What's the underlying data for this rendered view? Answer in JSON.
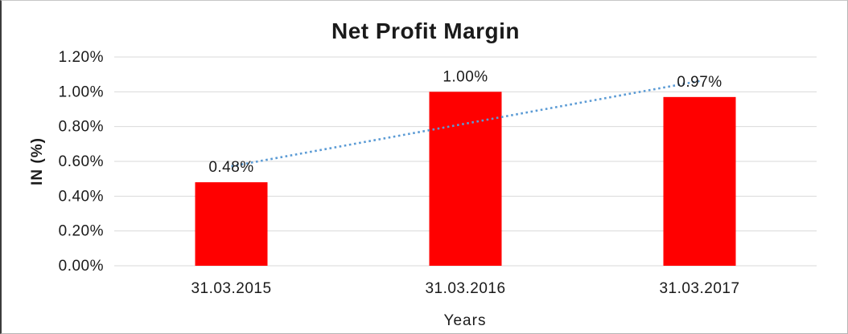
{
  "chart_data": {
    "type": "bar",
    "title": "Net Profit Margin",
    "xlabel": "Years",
    "ylabel": "IN (%)",
    "categories": [
      "31.03.2015",
      "31.03.2016",
      "31.03.2017"
    ],
    "values": [
      0.48,
      1.0,
      0.97
    ],
    "data_labels": [
      "0.48%",
      "1.00%",
      "0.97%"
    ],
    "ylim": [
      0,
      1.2
    ],
    "ytick_step": 0.2,
    "ytick_labels": [
      "0.00%",
      "0.20%",
      "0.40%",
      "0.60%",
      "0.80%",
      "1.00%",
      "1.20%"
    ],
    "grid": true,
    "legend": "none",
    "bar_color": "#FF0000",
    "gridline_color": "#D9D9D9",
    "text_color": "#1a1a1a",
    "trendline": {
      "type": "linear",
      "style": "dotted",
      "color": "#5B9BD5",
      "fit_values_percent": [
        0.572,
        0.817,
        1.062
      ]
    }
  }
}
